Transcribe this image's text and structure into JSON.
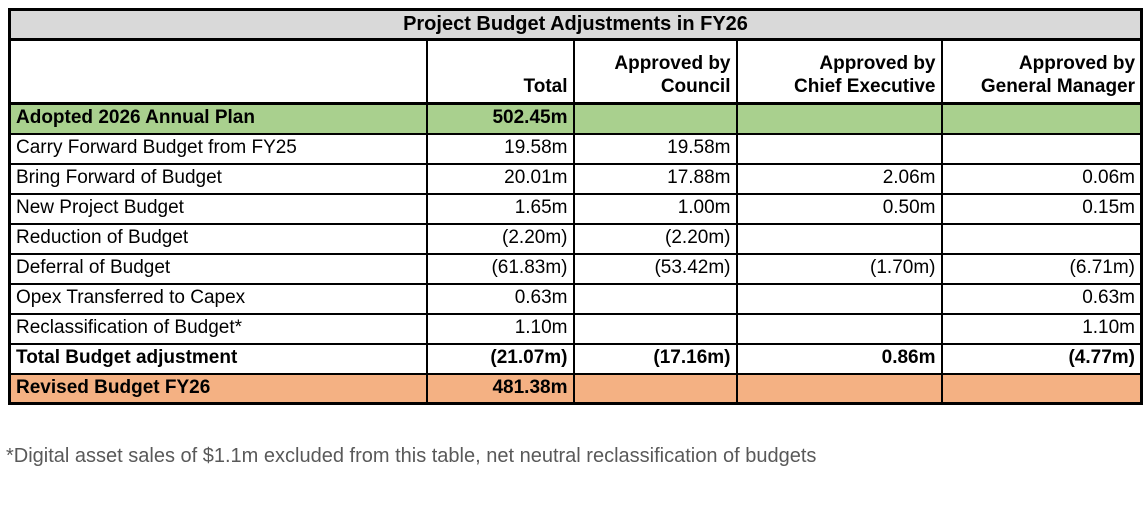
{
  "colors": {
    "title_bg": "#d9d9d9",
    "highlight_green": "#a9d08e",
    "highlight_orange": "#f4b183",
    "border": "#000000",
    "footnote_text": "#595959"
  },
  "table": {
    "title": "Project Budget Adjustments in FY26",
    "columns": [
      {
        "id": "item",
        "label": ""
      },
      {
        "id": "total",
        "label": "Total"
      },
      {
        "id": "approved-by-council",
        "label": "Approved by\nCouncil"
      },
      {
        "id": "approved-by-chief-executive",
        "label": "Approved by\nChief Executive"
      },
      {
        "id": "approved-by-general-manager",
        "label": "Approved by\nGeneral Manager"
      }
    ],
    "rows": [
      {
        "label": "Adopted 2026 Annual Plan",
        "values": [
          "502.45m",
          "",
          "",
          ""
        ],
        "highlight": "green",
        "bold": true
      },
      {
        "label": "Carry Forward Budget from FY25",
        "values": [
          "19.58m",
          "19.58m",
          "",
          ""
        ],
        "highlight": "",
        "bold": false
      },
      {
        "label": "Bring Forward of Budget",
        "values": [
          "20.01m",
          "17.88m",
          "2.06m",
          "0.06m"
        ],
        "highlight": "",
        "bold": false
      },
      {
        "label": "New Project Budget",
        "values": [
          "1.65m",
          "1.00m",
          "0.50m",
          "0.15m"
        ],
        "highlight": "",
        "bold": false
      },
      {
        "label": "Reduction of Budget",
        "values": [
          "(2.20m)",
          "(2.20m)",
          "",
          ""
        ],
        "highlight": "",
        "bold": false
      },
      {
        "label": "Deferral of Budget",
        "values": [
          "(61.83m)",
          "(53.42m)",
          "(1.70m)",
          "(6.71m)"
        ],
        "highlight": "",
        "bold": false
      },
      {
        "label": "Opex Transferred to Capex",
        "values": [
          "0.63m",
          "",
          "",
          "0.63m"
        ],
        "highlight": "",
        "bold": false
      },
      {
        "label": "Reclassification of Budget*",
        "values": [
          "1.10m",
          "",
          "",
          "1.10m"
        ],
        "highlight": "",
        "bold": false
      },
      {
        "label": "Total Budget adjustment",
        "values": [
          "(21.07m)",
          "(17.16m)",
          "0.86m",
          "(4.77m)"
        ],
        "highlight": "",
        "bold": true
      },
      {
        "label": "Revised Budget FY26",
        "values": [
          "481.38m",
          "",
          "",
          ""
        ],
        "highlight": "orange",
        "bold": true
      }
    ],
    "footnote": "*Digital asset sales of $1.1m excluded from this table, net neutral reclassification of budgets"
  }
}
